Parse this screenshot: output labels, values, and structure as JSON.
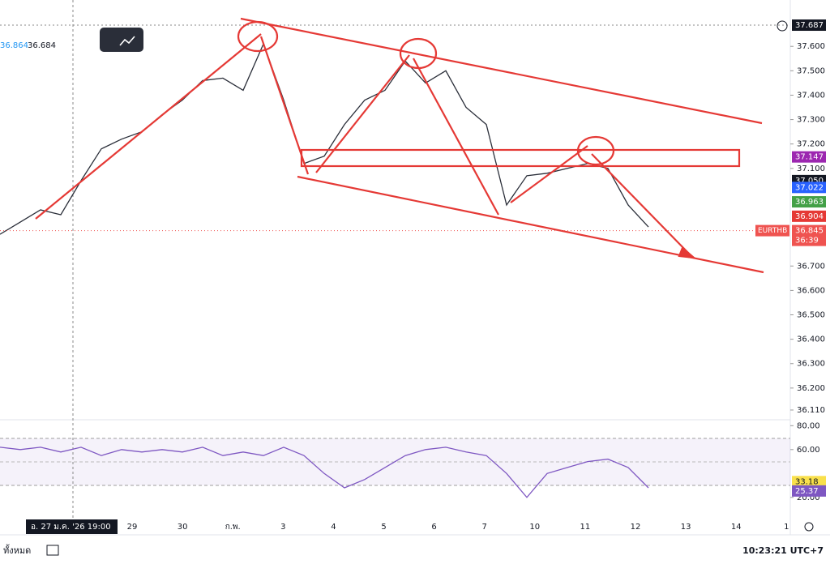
{
  "chart_data": {
    "type": "line",
    "header": [
      "36.864",
      "36.684"
    ],
    "values": [
      36.83,
      36.88,
      36.93,
      36.91,
      37.05,
      37.18,
      37.22,
      37.25,
      37.32,
      37.38,
      37.46,
      37.47,
      37.42,
      37.61,
      37.38,
      37.12,
      37.15,
      37.28,
      37.38,
      37.42,
      37.54,
      37.45,
      37.5,
      37.35,
      37.28,
      36.95,
      37.07,
      37.08,
      37.1,
      37.12,
      37.1,
      36.95,
      36.86
    ],
    "color": "#2a2e39",
    "ylim": [
      36.08,
      37.79
    ],
    "yticks": [
      {
        "value": 37.6,
        "label": "37.600"
      },
      {
        "value": 37.5,
        "label": "37.500"
      },
      {
        "value": 37.4,
        "label": "37.400"
      },
      {
        "value": 37.3,
        "label": "37.300"
      },
      {
        "value": 37.2,
        "label": "37.200"
      },
      {
        "value": 37.1,
        "label": "37.100"
      },
      {
        "value": 36.7,
        "label": "36.700"
      },
      {
        "value": 36.6,
        "label": "36.600"
      },
      {
        "value": 36.5,
        "label": "36.500"
      },
      {
        "value": 36.4,
        "label": "36.400"
      },
      {
        "value": 36.3,
        "label": "36.300"
      },
      {
        "value": 36.2,
        "label": "36.200"
      },
      {
        "value": 36.11,
        "label": "36.110"
      }
    ],
    "badges": [
      {
        "value": 37.687,
        "label": "37.687",
        "color": "#131722"
      },
      {
        "value": 37.147,
        "label": "37.147",
        "color": "#9c27b0"
      },
      {
        "value": 37.05,
        "label": "37.050",
        "color": "#131722"
      },
      {
        "value": 37.022,
        "label": "37.022",
        "color": "#2962ff"
      },
      {
        "value": 36.963,
        "label": "36.963",
        "color": "#43a047"
      },
      {
        "value": 36.904,
        "label": "36.904",
        "color": "#e53935"
      }
    ],
    "last": {
      "symbol": "EURTHB",
      "value": 36.845,
      "label": "36.845",
      "countdown": "36:39",
      "color": "#ef5350"
    }
  },
  "time_axis": {
    "labels": [
      "29",
      "30",
      "ก.พ.",
      "3",
      "4",
      "5",
      "6",
      "7",
      "10",
      "11",
      "12",
      "13",
      "14",
      "1"
    ],
    "crosshair": "อ. 27 ม.ค. '26   19:00"
  },
  "rsi": {
    "type": "line",
    "values": [
      62,
      60,
      62,
      58,
      62,
      55,
      60,
      58,
      60,
      58,
      62,
      55,
      58,
      55,
      62,
      55,
      40,
      28,
      35,
      45,
      55,
      60,
      62,
      58,
      55,
      40,
      20,
      40,
      45,
      50,
      52,
      45,
      28
    ],
    "color": "#7e57c2",
    "ylim": [
      9,
      87
    ],
    "yticks": [
      {
        "value": 80,
        "label": "80.00"
      },
      {
        "value": 60,
        "label": "60.00"
      },
      {
        "value": 20,
        "label": "20.00"
      }
    ],
    "badges": [
      {
        "value": 33.18,
        "label": "33.18",
        "color": "#f9e04b"
      },
      {
        "value": 25.37,
        "label": "25.37",
        "color": "#7e57c2"
      }
    ]
  },
  "footer": {
    "left": "ทั้งหมด",
    "clock": "10:23:21 UTC+7"
  }
}
